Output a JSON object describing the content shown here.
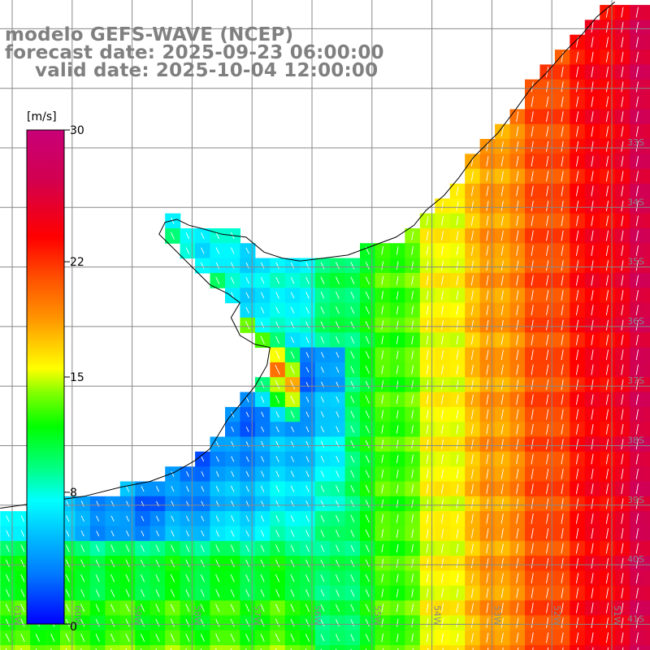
{
  "titles": {
    "model": "modelo GEFS-WAVE (NCEP)",
    "forecast": "forecast date: 2025-09-23 06:00:00",
    "valid": "valid date: 2025-10-04 12:00:00"
  },
  "colorbar": {
    "unit": "[m/s]",
    "min": 0,
    "max": 30,
    "tick_labels": [
      "30",
      "22",
      "15",
      "8",
      "0"
    ],
    "tick_values": [
      30,
      22,
      15,
      8,
      0
    ],
    "colors": [
      "#0000ff",
      "#0078ff",
      "#00d2ff",
      "#00ffff",
      "#00ff80",
      "#00ff00",
      "#80ff00",
      "#ffff00",
      "#ff9600",
      "#ff5000",
      "#ff0000",
      "#d20050",
      "#c80078"
    ]
  },
  "map": {
    "extent": {
      "lon_min": -61,
      "lon_max": -50.5,
      "lat_min": -41.3,
      "lat_max": -30.6
    },
    "lat_labels": [
      "33S",
      "34S",
      "35S",
      "36S",
      "37S",
      "38S",
      "39S",
      "40S",
      "41S"
    ],
    "lat_values": [
      -33,
      -34,
      -35,
      -36,
      -37,
      -38,
      -39,
      -40,
      -41
    ],
    "lon_labels": [
      "61W",
      "60W",
      "59W",
      "58W",
      "57W",
      "56W",
      "55W",
      "54W",
      "53W",
      "52W",
      "51W"
    ],
    "lon_values": [
      -61,
      -60,
      -59,
      -58,
      -57,
      -56,
      -55,
      -54,
      -53,
      -52,
      -51
    ],
    "coast_color": "#000000",
    "grid_color": "#888888",
    "arrow_color": "#ffffff"
  }
}
